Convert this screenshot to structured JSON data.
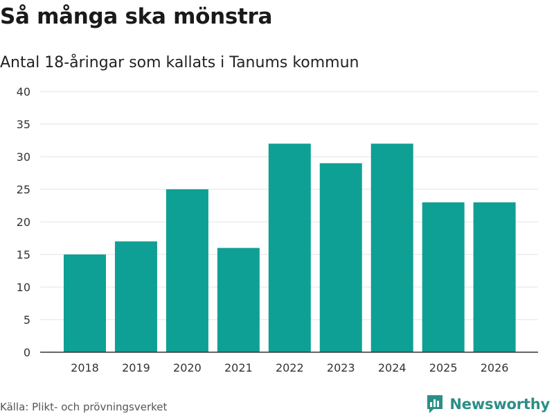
{
  "chart_data": {
    "type": "bar",
    "title": "Så många ska mönstra",
    "subtitle": "Antal 18-åringar som kallats i Tanums kommun",
    "categories": [
      "2018",
      "2019",
      "2020",
      "2021",
      "2022",
      "2023",
      "2024",
      "2025",
      "2026"
    ],
    "values": [
      15,
      17,
      25,
      16,
      32,
      29,
      32,
      23,
      23
    ],
    "xlabel": "",
    "ylabel": "",
    "ylim": [
      0,
      40
    ],
    "yticks": [
      0,
      5,
      10,
      15,
      20,
      25,
      30,
      35,
      40
    ],
    "grid": true,
    "bar_color": "#0fa095"
  },
  "footer": {
    "source": "Källa: Plikt- och prövningsverket",
    "brand": "Newsworthy",
    "brand_color": "#2b8f87"
  }
}
